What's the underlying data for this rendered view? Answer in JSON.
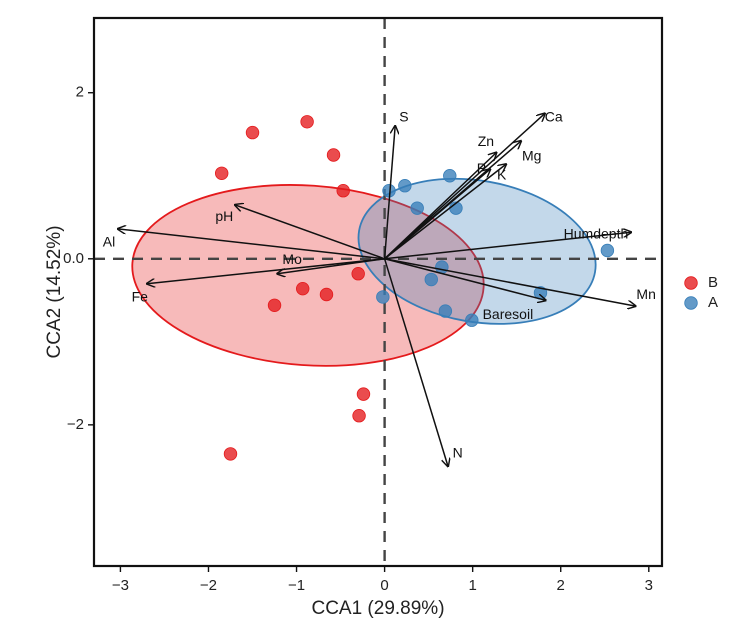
{
  "chart_data": {
    "type": "scatter",
    "title": "",
    "xlabel": "CCA1 (29.89%)",
    "ylabel": "CCA2 (14.52%)",
    "xlim": [
      -3.3,
      3.15
    ],
    "ylim": [
      -3.7,
      2.9
    ],
    "xticks": [
      -3,
      -2,
      -1,
      0,
      1,
      2,
      3
    ],
    "yticks": [
      -2,
      0,
      2
    ],
    "xtick_labels": [
      "−3",
      "−2",
      "−1",
      "0",
      "1",
      "2",
      "3"
    ],
    "ytick_labels": [
      "−2",
      "0.0",
      "2"
    ],
    "grid": false,
    "reference_lines": {
      "x": 0,
      "y": 0,
      "style": "dashed"
    },
    "legend_position": "right",
    "series": [
      {
        "name": "B",
        "color": "#e41a1c",
        "points": [
          [
            -1.85,
            1.03
          ],
          [
            -1.5,
            1.52
          ],
          [
            -0.88,
            1.65
          ],
          [
            -0.58,
            1.25
          ],
          [
            -0.47,
            0.82
          ],
          [
            -0.3,
            -0.18
          ],
          [
            -0.93,
            -0.36
          ],
          [
            -0.66,
            -0.43
          ],
          [
            -1.25,
            -0.56
          ],
          [
            -0.24,
            -1.63
          ],
          [
            -0.29,
            -1.89
          ],
          [
            -1.75,
            -2.35
          ]
        ],
        "ellipse": {
          "center": [
            -0.87,
            -0.2
          ],
          "semi_axes": [
            1.02,
            2.12
          ],
          "angle_deg": 86
        }
      },
      {
        "name": "A",
        "color": "#377eb8",
        "points": [
          [
            0.05,
            0.82
          ],
          [
            0.23,
            0.88
          ],
          [
            0.74,
            1.0
          ],
          [
            0.37,
            0.61
          ],
          [
            0.81,
            0.61
          ],
          [
            0.65,
            -0.1
          ],
          [
            0.53,
            -0.25
          ],
          [
            -0.02,
            -0.46
          ],
          [
            0.69,
            -0.63
          ],
          [
            0.99,
            -0.74
          ],
          [
            1.77,
            -0.41
          ],
          [
            2.53,
            0.1
          ]
        ],
        "ellipse": {
          "center": [
            1.05,
            0.09
          ],
          "semi_axes": [
            1.36,
            0.85
          ],
          "angle_deg": -10
        }
      }
    ],
    "vectors": [
      {
        "name": "S",
        "x": 0.12,
        "y": 1.6,
        "label_x": 0.22,
        "label_y": 1.7
      },
      {
        "name": "Zn",
        "x": 1.27,
        "y": 1.28,
        "label_x": 1.15,
        "label_y": 1.4
      },
      {
        "name": "P",
        "x": 1.2,
        "y": 1.08,
        "label_x": 1.1,
        "label_y": 1.08
      },
      {
        "name": "K",
        "x": 1.38,
        "y": 1.14,
        "label_x": 1.33,
        "label_y": 1.0
      },
      {
        "name": "Mg",
        "x": 1.55,
        "y": 1.42,
        "label_x": 1.67,
        "label_y": 1.23
      },
      {
        "name": "Ca",
        "x": 1.82,
        "y": 1.75,
        "label_x": 1.92,
        "label_y": 1.7
      },
      {
        "name": "Humdepth",
        "x": 2.8,
        "y": 0.32,
        "label_x": 2.4,
        "label_y": 0.29
      },
      {
        "name": "Mn",
        "x": 2.85,
        "y": -0.57,
        "label_x": 2.97,
        "label_y": -0.44
      },
      {
        "name": "Baresoil",
        "x": 1.83,
        "y": -0.5,
        "label_x": 1.4,
        "label_y": -0.68
      },
      {
        "name": "N",
        "x": 0.72,
        "y": -2.5,
        "label_x": 0.83,
        "label_y": -2.35
      },
      {
        "name": "pH",
        "x": -1.7,
        "y": 0.65,
        "label_x": -1.82,
        "label_y": 0.5
      },
      {
        "name": "Al",
        "x": -3.03,
        "y": 0.36,
        "label_x": -3.13,
        "label_y": 0.19
      },
      {
        "name": "Mo",
        "x": -1.22,
        "y": -0.18,
        "label_x": -1.05,
        "label_y": -0.02
      },
      {
        "name": "Fe",
        "x": -2.7,
        "y": -0.3,
        "label_x": -2.78,
        "label_y": -0.47
      }
    ]
  }
}
